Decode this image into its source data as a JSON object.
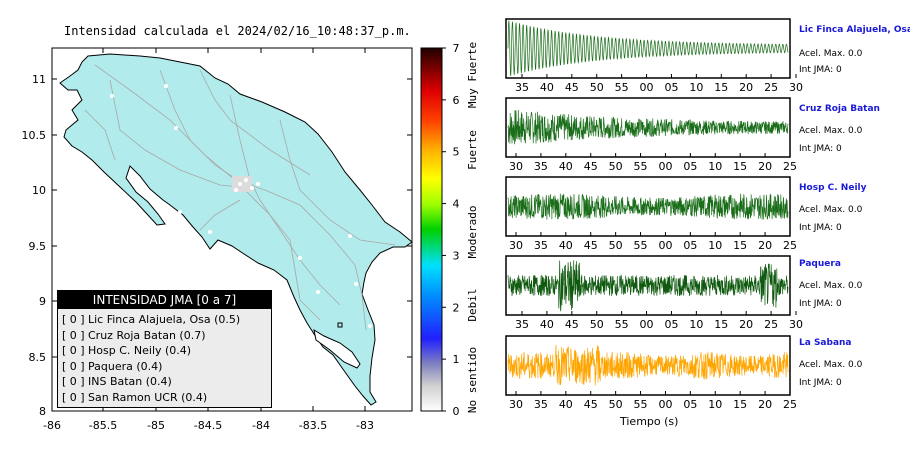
{
  "map": {
    "title": "Intensidad calculada el 2024/02/16_10:48:37_p.m.",
    "lat_ticks": [
      "11",
      "10.5",
      "10",
      "9.5",
      "9",
      "8.5",
      "8"
    ],
    "lon_ticks": [
      "-86",
      "-85.5",
      "-85",
      "-84.5",
      "-84",
      "-83.5",
      "-83"
    ],
    "land_color": "#b2ebeb",
    "road_color": "#a8a8a8"
  },
  "legend": {
    "title": "INTENSIDAD JMA [0 a 7]",
    "items": [
      {
        "bracket": "[ 0 ]",
        "text": "Lic Finca Alajuela, Osa (0.5)"
      },
      {
        "bracket": "[ 0 ]",
        "text": "Cruz Roja Batan (0.7)"
      },
      {
        "bracket": "[ 0 ]",
        "text": "Hosp C. Neily (0.4)"
      },
      {
        "bracket": "[ 0 ]",
        "text": "Paquera (0.4)"
      },
      {
        "bracket": "[ 0 ]",
        "text": "INS Batan (0.4)"
      },
      {
        "bracket": "[ 0 ]",
        "text": "San Ramon UCR (0.4)"
      }
    ]
  },
  "colorbar": {
    "ticks": [
      "7",
      "6",
      "5",
      "4",
      "3",
      "2",
      "1",
      "0"
    ],
    "labels": [
      "Muy Fuerte",
      "Fuerte",
      "Moderado",
      "Debil",
      "No sentido"
    ]
  },
  "stations": [
    {
      "name": "Lic Finca Alajuela, Osa",
      "accel": "Acel. Max. 0.0",
      "jma": "Int JMA: 0",
      "color": "#1a6e1a",
      "ticks": [
        "35",
        "40",
        "45",
        "50",
        "55",
        "00",
        "05",
        "10",
        "15",
        "20",
        "25",
        "30"
      ]
    },
    {
      "name": "Cruz Roja Batan",
      "accel": "Acel. Max. 0.0",
      "jma": "Int JMA: 0",
      "color": "#1a6e1a",
      "ticks": [
        "30",
        "35",
        "40",
        "45",
        "50",
        "55",
        "00",
        "05",
        "10",
        "15",
        "20",
        "25"
      ]
    },
    {
      "name": "Hosp C. Neily",
      "accel": "Acel. Max. 0.0",
      "jma": "Int JMA: 0",
      "color": "#1a6e1a",
      "ticks": [
        "30",
        "35",
        "40",
        "45",
        "50",
        "55",
        "00",
        "05",
        "10",
        "15",
        "20",
        "25"
      ]
    },
    {
      "name": "Paquera",
      "accel": "Acel. Max. 0.0",
      "jma": "Int JMA: 0",
      "color": "#0f5a0f",
      "ticks": [
        "35",
        "40",
        "45",
        "50",
        "55",
        "00",
        "05",
        "10",
        "15",
        "20",
        "25",
        "30"
      ]
    },
    {
      "name": "La Sabana",
      "accel": "Acel. Max. 0.0",
      "jma": "Int JMA: 0",
      "color": "#ffa500",
      "ticks": [
        "30",
        "35",
        "40",
        "45",
        "50",
        "55",
        "00",
        "05",
        "10",
        "15",
        "20",
        "25"
      ]
    }
  ],
  "time_axis_label": "Tiempo (s)"
}
